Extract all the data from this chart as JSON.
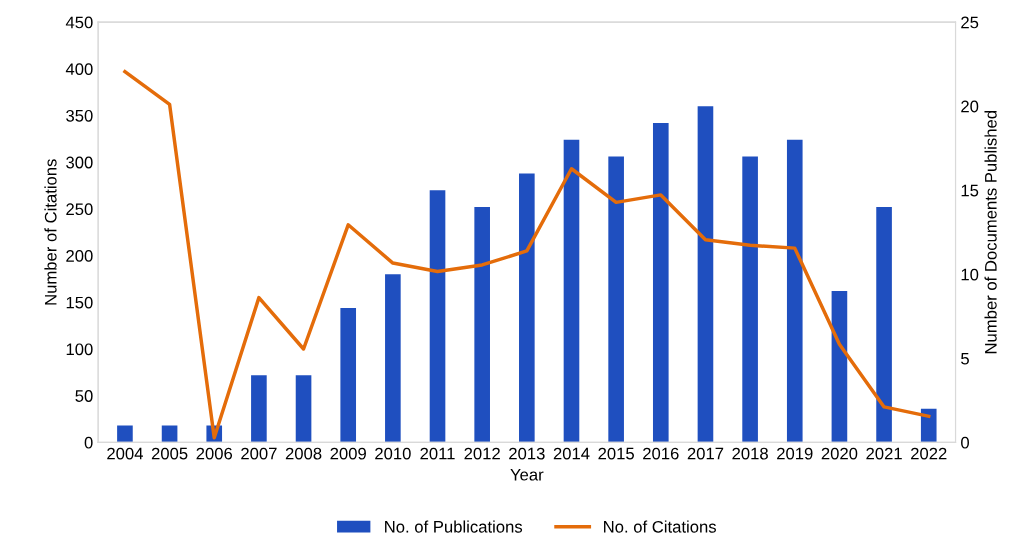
{
  "chart_data": {
    "type": "bar",
    "xlabel": "Year",
    "ylabel": "Number of Citations",
    "y2label": "Number of Documents Published",
    "categories": [
      "2004",
      "2005",
      "2006",
      "2007",
      "2008",
      "2009",
      "2010",
      "2011",
      "2012",
      "2013",
      "2014",
      "2015",
      "2016",
      "2017",
      "2018",
      "2019",
      "2020",
      "2021",
      "2022"
    ],
    "series": [
      {
        "name": "No. of Publications",
        "axis": "y2",
        "color": "#1f4fbf",
        "values": [
          1,
          1,
          1,
          4,
          4,
          8,
          10,
          15,
          14,
          16,
          18,
          17,
          19,
          20,
          17,
          18,
          9,
          14,
          2
        ]
      },
      {
        "name": "No. of Citations",
        "type": "line",
        "axis": "y",
        "color": "#e46c0a",
        "values": [
          397,
          362,
          5,
          155,
          100,
          233,
          192,
          183,
          190,
          205,
          293,
          257,
          265,
          217,
          211,
          208,
          105,
          38,
          28
        ]
      }
    ],
    "ylim": [
      0,
      450
    ],
    "yticks": [
      0,
      50,
      100,
      150,
      200,
      250,
      300,
      350,
      400,
      450
    ],
    "y2lim": [
      0,
      25
    ],
    "y2ticks": [
      0,
      5,
      10,
      15,
      20,
      25
    ],
    "grid": false,
    "legend": "bottom",
    "marker": "none",
    "line_style": "solid"
  }
}
